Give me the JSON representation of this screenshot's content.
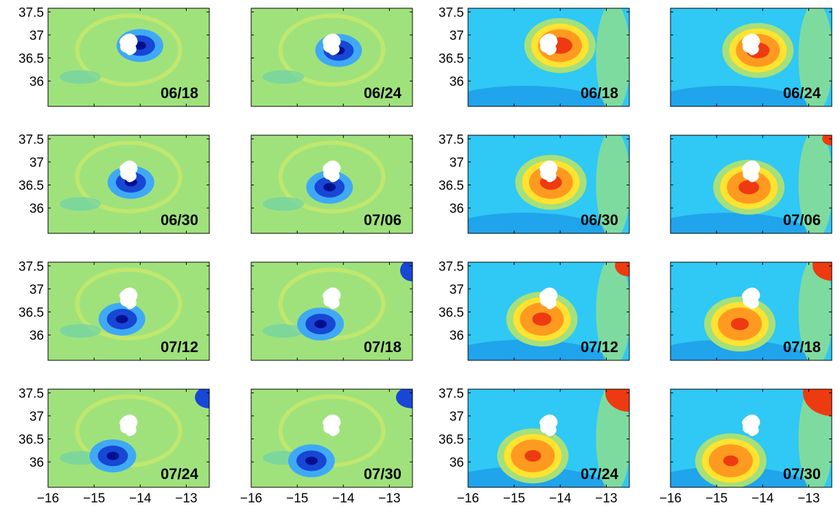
{
  "chart_data": [
    {
      "type": "map",
      "label": "06/18",
      "xlim": [
        -16,
        -12.5
      ],
      "ylim": [
        35.45,
        37.58
      ],
      "xticks": [
        {
          "value": -16,
          "label": "−16"
        },
        {
          "value": -15,
          "label": "−15"
        },
        {
          "value": -14,
          "label": "−14"
        },
        {
          "value": -13,
          "label": "−13"
        }
      ],
      "yticks": [
        36,
        36.5,
        37,
        37.5
      ],
      "show_xticklabels": false,
      "show_yticklabels": true
    },
    {
      "type": "map",
      "label": "06/24",
      "xlim": [
        -16,
        -12.5
      ],
      "ylim": [
        35.45,
        37.58
      ],
      "xticks": [
        {
          "value": -16,
          "label": "−16"
        },
        {
          "value": -15,
          "label": "−15"
        },
        {
          "value": -14,
          "label": "−14"
        },
        {
          "value": -13,
          "label": "−13"
        }
      ],
      "yticks": [
        36,
        36.5,
        37,
        37.5
      ],
      "show_xticklabels": false,
      "show_yticklabels": false
    },
    {
      "type": "map",
      "label": "06/18",
      "xlim": [
        -16,
        -12.5
      ],
      "ylim": [
        35.45,
        37.58
      ],
      "xticks": [
        {
          "value": -16,
          "label": "−16"
        },
        {
          "value": -15,
          "label": "−15"
        },
        {
          "value": -14,
          "label": "−14"
        },
        {
          "value": -13,
          "label": "−13"
        }
      ],
      "yticks": [
        36,
        36.5,
        37,
        37.5
      ],
      "show_xticklabels": false,
      "show_yticklabels": true
    },
    {
      "type": "map",
      "label": "06/24",
      "xlim": [
        -16,
        -12.5
      ],
      "ylim": [
        35.45,
        37.58
      ],
      "xticks": [
        {
          "value": -16,
          "label": "−16"
        },
        {
          "value": -15,
          "label": "−15"
        },
        {
          "value": -14,
          "label": "−14"
        },
        {
          "value": -13,
          "label": "−13"
        }
      ],
      "yticks": [
        36,
        36.5,
        37,
        37.5
      ],
      "show_xticklabels": false,
      "show_yticklabels": false
    },
    {
      "type": "map",
      "label": "06/30",
      "xlim": [
        -16,
        -12.5
      ],
      "ylim": [
        35.45,
        37.58
      ],
      "xticks": [
        {
          "value": -16,
          "label": "−16"
        },
        {
          "value": -15,
          "label": "−15"
        },
        {
          "value": -14,
          "label": "−14"
        },
        {
          "value": -13,
          "label": "−13"
        }
      ],
      "yticks": [
        36,
        36.5,
        37,
        37.5
      ],
      "show_xticklabels": false,
      "show_yticklabels": true
    },
    {
      "type": "map",
      "label": "07/06",
      "xlim": [
        -16,
        -12.5
      ],
      "ylim": [
        35.45,
        37.58
      ],
      "xticks": [
        {
          "value": -16,
          "label": "−16"
        },
        {
          "value": -15,
          "label": "−15"
        },
        {
          "value": -14,
          "label": "−14"
        },
        {
          "value": -13,
          "label": "−13"
        }
      ],
      "yticks": [
        36,
        36.5,
        37,
        37.5
      ],
      "show_xticklabels": false,
      "show_yticklabels": false
    },
    {
      "type": "map",
      "label": "06/30",
      "xlim": [
        -16,
        -12.5
      ],
      "ylim": [
        35.45,
        37.58
      ],
      "xticks": [
        {
          "value": -16,
          "label": "−16"
        },
        {
          "value": -15,
          "label": "−15"
        },
        {
          "value": -14,
          "label": "−14"
        },
        {
          "value": -13,
          "label": "−13"
        }
      ],
      "yticks": [
        36,
        36.5,
        37,
        37.5
      ],
      "show_xticklabels": false,
      "show_yticklabels": true
    },
    {
      "type": "map",
      "label": "07/06",
      "xlim": [
        -16,
        -12.5
      ],
      "ylim": [
        35.45,
        37.58
      ],
      "xticks": [
        {
          "value": -16,
          "label": "−16"
        },
        {
          "value": -15,
          "label": "−15"
        },
        {
          "value": -14,
          "label": "−14"
        },
        {
          "value": -13,
          "label": "−13"
        }
      ],
      "yticks": [
        36,
        36.5,
        37,
        37.5
      ],
      "show_xticklabels": false,
      "show_yticklabels": false
    },
    {
      "type": "map",
      "label": "07/12",
      "xlim": [
        -16,
        -12.5
      ],
      "ylim": [
        35.45,
        37.58
      ],
      "xticks": [
        {
          "value": -16,
          "label": "−16"
        },
        {
          "value": -15,
          "label": "−15"
        },
        {
          "value": -14,
          "label": "−14"
        },
        {
          "value": -13,
          "label": "−13"
        }
      ],
      "yticks": [
        36,
        36.5,
        37,
        37.5
      ],
      "show_xticklabels": false,
      "show_yticklabels": true
    },
    {
      "type": "map",
      "label": "07/18",
      "xlim": [
        -16,
        -12.5
      ],
      "ylim": [
        35.45,
        37.58
      ],
      "xticks": [
        {
          "value": -16,
          "label": "−16"
        },
        {
          "value": -15,
          "label": "−15"
        },
        {
          "value": -14,
          "label": "−14"
        },
        {
          "value": -13,
          "label": "−13"
        }
      ],
      "yticks": [
        36,
        36.5,
        37,
        37.5
      ],
      "show_xticklabels": false,
      "show_yticklabels": false
    },
    {
      "type": "map",
      "label": "07/12",
      "xlim": [
        -16,
        -12.5
      ],
      "ylim": [
        35.45,
        37.58
      ],
      "xticks": [
        {
          "value": -16,
          "label": "−16"
        },
        {
          "value": -15,
          "label": "−15"
        },
        {
          "value": -14,
          "label": "−14"
        },
        {
          "value": -13,
          "label": "−13"
        }
      ],
      "yticks": [
        36,
        36.5,
        37,
        37.5
      ],
      "show_xticklabels": false,
      "show_yticklabels": true
    },
    {
      "type": "map",
      "label": "07/18",
      "xlim": [
        -16,
        -12.5
      ],
      "ylim": [
        35.45,
        37.58
      ],
      "xticks": [
        {
          "value": -16,
          "label": "−16"
        },
        {
          "value": -15,
          "label": "−15"
        },
        {
          "value": -14,
          "label": "−14"
        },
        {
          "value": -13,
          "label": "−13"
        }
      ],
      "yticks": [
        36,
        36.5,
        37,
        37.5
      ],
      "show_xticklabels": false,
      "show_yticklabels": false
    },
    {
      "type": "map",
      "label": "07/24",
      "xlim": [
        -16,
        -12.5
      ],
      "ylim": [
        35.45,
        37.58
      ],
      "xticks": [
        {
          "value": -16,
          "label": "−16"
        },
        {
          "value": -15,
          "label": "−15"
        },
        {
          "value": -14,
          "label": "−14"
        },
        {
          "value": -13,
          "label": "−13"
        }
      ],
      "yticks": [
        36,
        36.5,
        37,
        37.5
      ],
      "show_xticklabels": true,
      "show_yticklabels": true
    },
    {
      "type": "map",
      "label": "07/30",
      "xlim": [
        -16,
        -12.5
      ],
      "ylim": [
        35.45,
        37.58
      ],
      "xticks": [
        {
          "value": -16,
          "label": "−16"
        },
        {
          "value": -15,
          "label": "−15"
        },
        {
          "value": -14,
          "label": "−14"
        },
        {
          "value": -13,
          "label": "−13"
        }
      ],
      "yticks": [
        36,
        36.5,
        37,
        37.5
      ],
      "show_xticklabels": true,
      "show_yticklabels": false
    },
    {
      "type": "map",
      "label": "07/24",
      "xlim": [
        -16,
        -12.5
      ],
      "ylim": [
        35.45,
        37.58
      ],
      "xticks": [
        {
          "value": -16,
          "label": "−16"
        },
        {
          "value": -15,
          "label": "−15"
        },
        {
          "value": -14,
          "label": "−14"
        },
        {
          "value": -13,
          "label": "−13"
        }
      ],
      "yticks": [
        36,
        36.5,
        37,
        37.5
      ],
      "show_xticklabels": true,
      "show_yticklabels": true
    },
    {
      "type": "map",
      "label": "07/30",
      "xlim": [
        -16,
        -12.5
      ],
      "ylim": [
        35.45,
        37.58
      ],
      "xticks": [
        {
          "value": -16,
          "label": "−16"
        },
        {
          "value": -15,
          "label": "−15"
        },
        {
          "value": -14,
          "label": "−14"
        },
        {
          "value": -13,
          "label": "−13"
        }
      ],
      "yticks": [
        36,
        36.5,
        37,
        37.5
      ],
      "show_xticklabels": true,
      "show_yticklabels": false
    }
  ]
}
